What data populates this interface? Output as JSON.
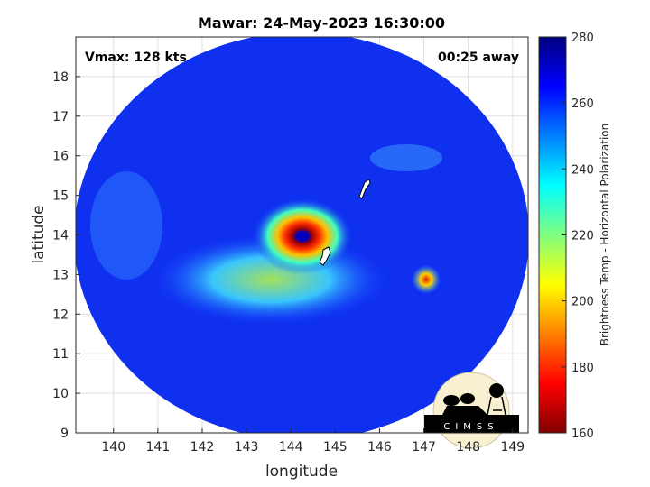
{
  "chart_data": {
    "type": "heatmap",
    "title": "Mawar: 24-May-2023 16:30:00",
    "xlabel": "longitude",
    "ylabel": "latitude",
    "xlim": [
      139.15,
      149.35
    ],
    "ylim": [
      9,
      19
    ],
    "xticks": [
      "140",
      "141",
      "142",
      "143",
      "144",
      "145",
      "146",
      "147",
      "148",
      "149"
    ],
    "yticks": [
      "9",
      "10",
      "11",
      "12",
      "13",
      "14",
      "15",
      "16",
      "17",
      "18"
    ],
    "grid": true,
    "annotations": {
      "vmax": "Vmax: 128 kts",
      "time_offset": "00:25 away"
    },
    "colorbar": {
      "label": "Brightness Temp - Horizontal Polarization",
      "range": [
        160,
        280
      ],
      "ticks": [
        "160",
        "180",
        "200",
        "220",
        "240",
        "260",
        "280"
      ],
      "colormap": "jet"
    },
    "storm_center": {
      "lon": 144.35,
      "lat": 13.95
    },
    "logo": "CIMSS"
  }
}
